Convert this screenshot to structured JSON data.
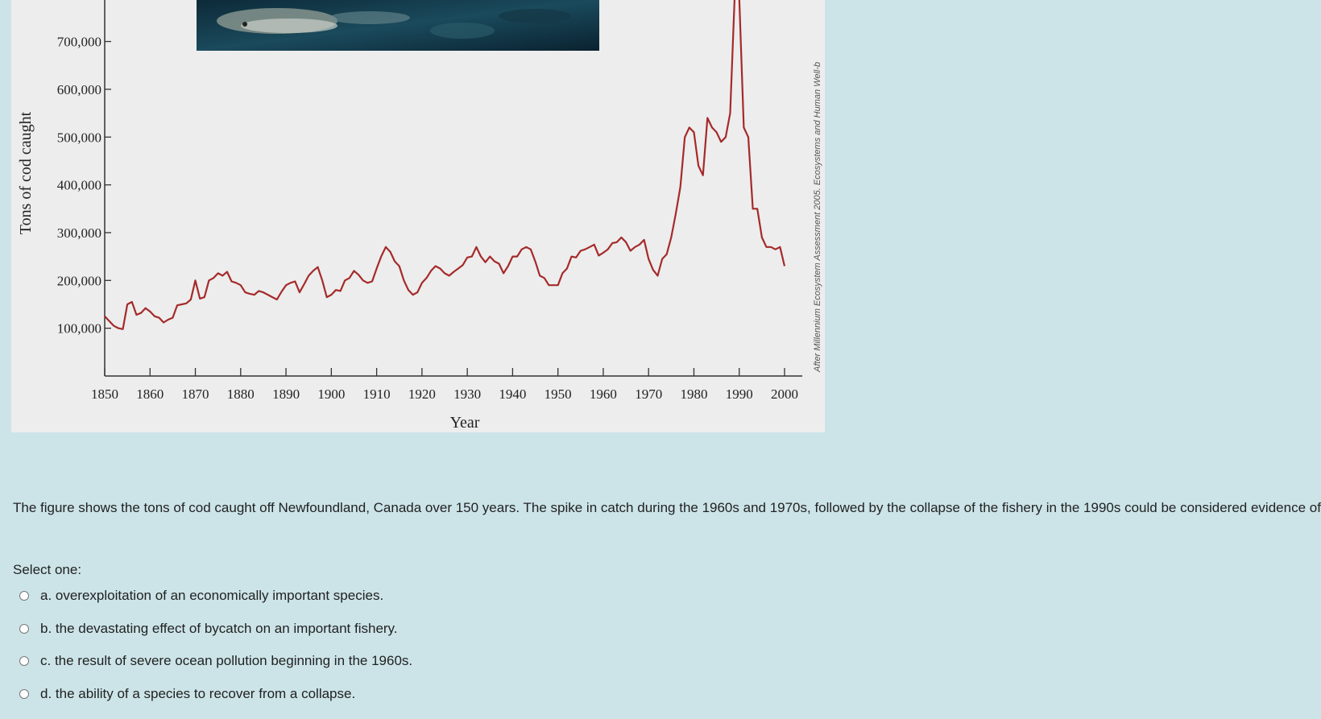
{
  "chart_data": {
    "type": "line",
    "ylabel": "Tons of cod caught",
    "xlabel": "Year",
    "ylim": [
      0,
      800000
    ],
    "xlim": [
      1850,
      2000
    ],
    "yticks": [
      "100,000",
      "200,000",
      "300,000",
      "400,000",
      "500,000",
      "600,000",
      "700,000"
    ],
    "xticks": [
      "1850",
      "1860",
      "1870",
      "1880",
      "1890",
      "1900",
      "1910",
      "1920",
      "1930",
      "1940",
      "1950",
      "1960",
      "1970",
      "1980",
      "1990",
      "2000"
    ],
    "line_color": "#a52a2a",
    "grid": false,
    "credit": "After Millennium Ecosystem Assessment 2005. Ecosystems and Human Well-b",
    "series": [
      {
        "x": [
          1850,
          1851,
          1852,
          1853,
          1854,
          1855,
          1856,
          1857,
          1858,
          1859,
          1860,
          1861,
          1862,
          1863,
          1864,
          1865,
          1866,
          1867,
          1868,
          1869,
          1870,
          1871,
          1872,
          1873,
          1874,
          1875,
          1876,
          1877,
          1878,
          1879,
          1880,
          1881,
          1882,
          1883,
          1884,
          1885,
          1886,
          1887,
          1888,
          1889,
          1890,
          1891,
          1892,
          1893,
          1894,
          1895,
          1896,
          1897,
          1898,
          1899,
          1900,
          1901,
          1902,
          1903,
          1904,
          1905,
          1906,
          1907,
          1908,
          1909,
          1910,
          1911,
          1912,
          1913,
          1914,
          1915,
          1916,
          1917,
          1918,
          1919,
          1920,
          1921,
          1922,
          1923,
          1924,
          1925,
          1926,
          1927,
          1928,
          1929,
          1930,
          1931,
          1932,
          1933,
          1934,
          1935,
          1936,
          1937,
          1938,
          1939,
          1940,
          1941,
          1942,
          1943,
          1944,
          1945,
          1946,
          1947,
          1948,
          1949,
          1950,
          1951,
          1952,
          1953,
          1954,
          1955,
          1956,
          1957,
          1958,
          1959,
          1960,
          1961,
          1962,
          1963,
          1964,
          1965,
          1966,
          1967,
          1968,
          1969,
          1970,
          1971,
          1972,
          1973,
          1974,
          1975,
          1976,
          1977,
          1978,
          1979,
          1980,
          1981,
          1982,
          1983,
          1984,
          1985,
          1986,
          1987,
          1988,
          1989,
          1990,
          1991,
          1992,
          1993,
          1994,
          1995,
          1996,
          1997,
          1998,
          1999,
          2000
        ],
        "y": [
          125000,
          115000,
          105000,
          100000,
          98000,
          150000,
          155000,
          128000,
          132000,
          142000,
          135000,
          125000,
          122000,
          112000,
          118000,
          122000,
          148000,
          150000,
          152000,
          160000,
          200000,
          162000,
          165000,
          200000,
          205000,
          215000,
          210000,
          218000,
          198000,
          195000,
          190000,
          175000,
          172000,
          170000,
          178000,
          175000,
          170000,
          165000,
          160000,
          176000,
          190000,
          195000,
          198000,
          175000,
          192000,
          210000,
          220000,
          228000,
          200000,
          165000,
          170000,
          180000,
          178000,
          200000,
          205000,
          220000,
          212000,
          200000,
          195000,
          198000,
          225000,
          250000,
          270000,
          260000,
          240000,
          230000,
          200000,
          180000,
          170000,
          175000,
          195000,
          205000,
          220000,
          230000,
          225000,
          215000,
          210000,
          218000,
          225000,
          232000,
          248000,
          250000,
          270000,
          250000,
          238000,
          250000,
          240000,
          235000,
          215000,
          230000,
          250000,
          250000,
          265000,
          270000,
          265000,
          240000,
          210000,
          205000,
          190000,
          190000,
          190000,
          215000,
          225000,
          250000,
          248000,
          262000,
          265000,
          270000,
          275000,
          252000,
          258000,
          265000,
          278000,
          280000,
          290000,
          280000,
          262000,
          270000,
          275000,
          285000,
          245000,
          222000,
          210000,
          245000,
          255000,
          290000,
          340000,
          395000,
          500000,
          520000,
          510000,
          440000,
          420000,
          540000,
          520000,
          510000,
          490000,
          500000,
          550000,
          800000,
          800000,
          520000,
          500000,
          350000,
          350000,
          290000,
          270000,
          270000,
          265000,
          270000,
          230000
        ]
      }
    ]
  },
  "question": {
    "text": "The figure shows the tons of cod caught off Newfoundland, Canada over 150 years. The spike in catch during the 1960s and 1970s, followed by the collapse of the fishery in the 1990s could be considered evidence of"
  },
  "select_label": "Select one:",
  "options": [
    {
      "label": "a. overexploitation of an economically important species."
    },
    {
      "label": "b. the devastating effect of bycatch on an important fishery."
    },
    {
      "label": "c. the result of severe ocean pollution beginning in the 1960s."
    },
    {
      "label": "d. the ability of a species to recover from a collapse."
    }
  ]
}
